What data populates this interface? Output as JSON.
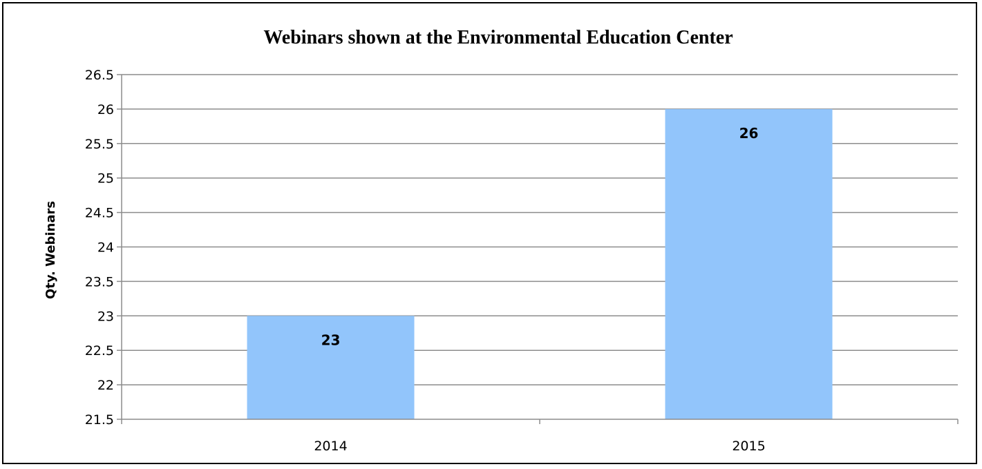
{
  "chart_data": {
    "type": "bar",
    "title": "Webinars shown at the Environmental Education Center",
    "xlabel": "",
    "ylabel": "Qty. Webinars",
    "categories": [
      "2014",
      "2015"
    ],
    "values": [
      23,
      26
    ],
    "data_labels": [
      "23",
      "26"
    ],
    "ylim": [
      21.5,
      26.5
    ],
    "y_ticks": [
      21.5,
      22,
      22.5,
      23,
      23.5,
      24,
      24.5,
      25,
      25.5,
      26,
      26.5
    ],
    "y_tick_labels": [
      "21.5",
      "22",
      "22.5",
      "23",
      "23.5",
      "24",
      "24.5",
      "25",
      "25.5",
      "26",
      "26.5"
    ],
    "grid": true,
    "legend": "none",
    "colors": {
      "bar": "#92c5fb",
      "grid": "#8c8c8c",
      "axis": "#8c8c8c",
      "frame": "#000000"
    }
  }
}
